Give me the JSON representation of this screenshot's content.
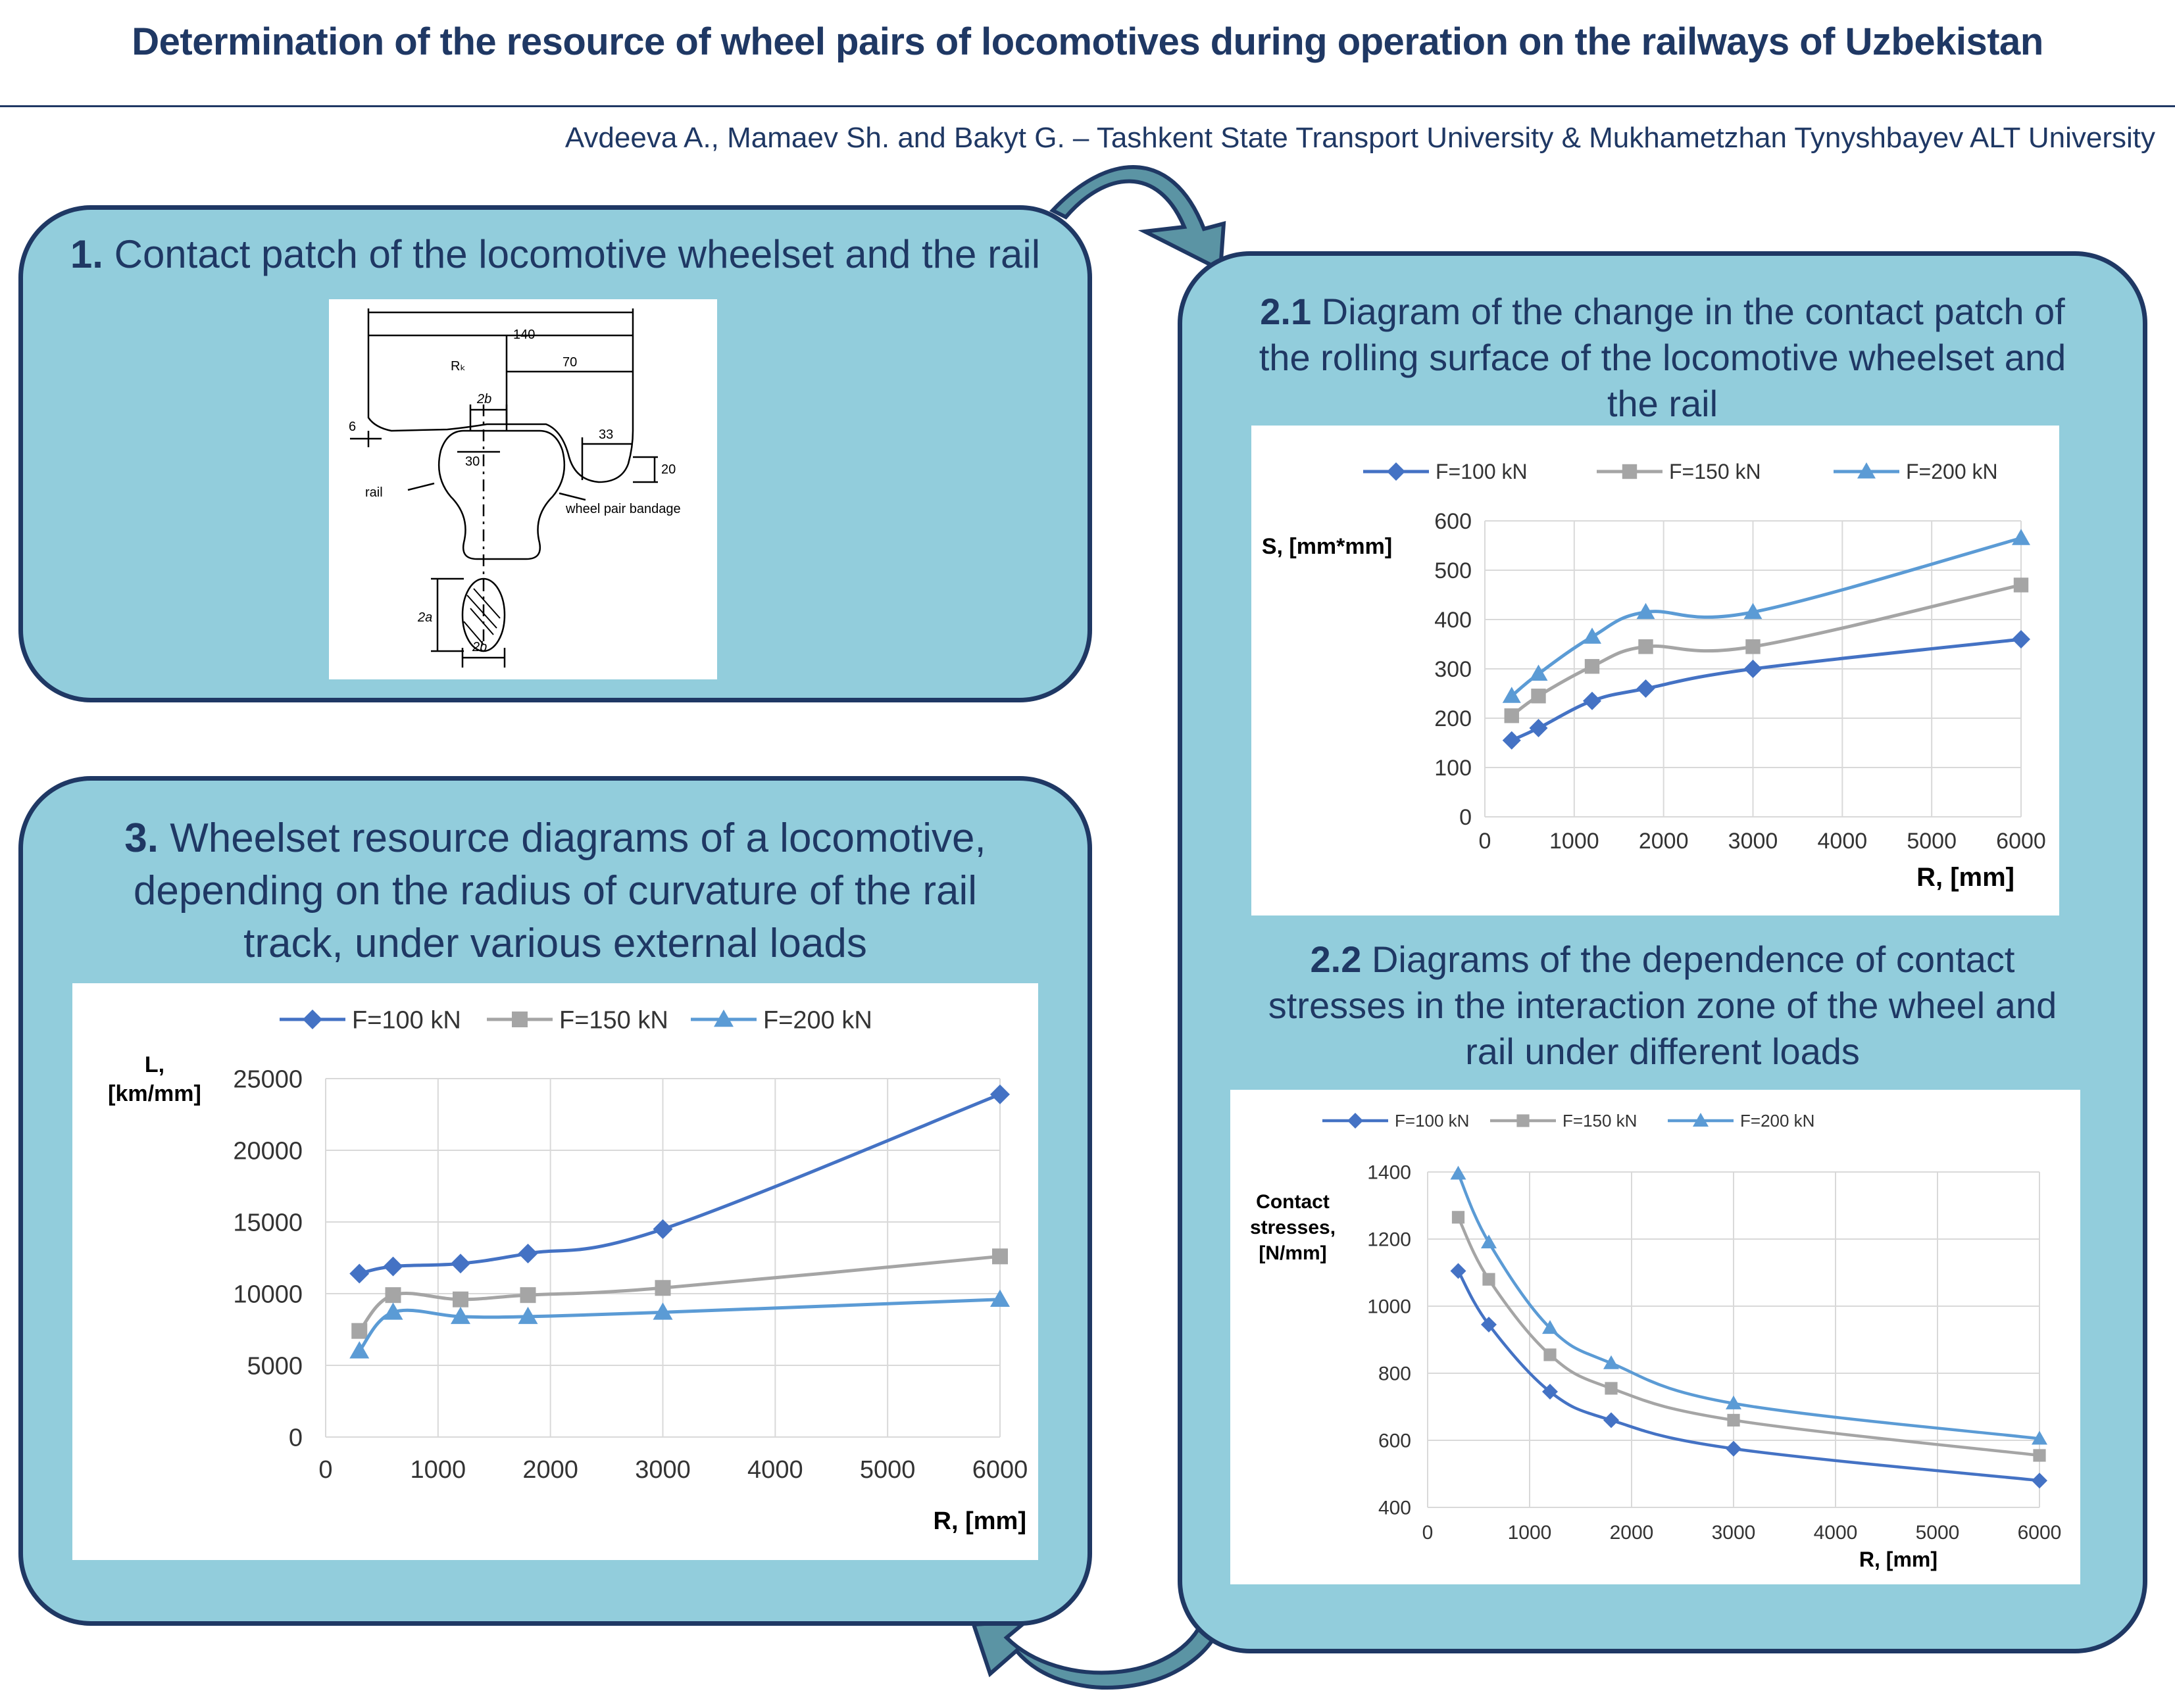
{
  "header": {
    "title": "Determination of the resource of wheel pairs of locomotives during operation on the railways of Uzbekistan",
    "authors": "Avdeeva A., Mamaev Sh. and Bakyt G. – Tashkent State Transport University &  Mukhametzhan Tynyshbayev ALT University"
  },
  "panel1": {
    "number": "1.",
    "title": " Contact patch of the locomotive wheelset and the rail",
    "diagram": {
      "dim_140": "140",
      "dim_70": "70",
      "dim_rk": "Rₖ",
      "dim_2b_top": "2b",
      "dim_6": "6",
      "dim_30": "30",
      "dim_33": "33",
      "dim_20": "20",
      "dim_2a": "2a",
      "dim_2b_bottom": "2b",
      "label_rail": "rail",
      "label_bandage": "wheel pair bandage"
    }
  },
  "panel21": {
    "number": "2.1",
    "title_line1": " Diagram of the change in the contact patch of",
    "title_line2": "the rolling surface of the locomotive wheelset and",
    "title_line3": "the rail"
  },
  "panel22": {
    "number": "2.2",
    "title_line1": " Diagrams of the dependence of contact",
    "title_line2": "stresses in the interaction zone of the wheel and",
    "title_line3": "rail under different loads"
  },
  "panel3": {
    "number": "3.",
    "title_line1": " Wheelset resource diagrams of a locomotive,",
    "title_line2": "depending on the radius of curvature of the rail",
    "title_line3": "track, under various external loads"
  },
  "colors": {
    "series_100": "#4472c4",
    "series_150": "#a5a5a5",
    "series_200": "#5b9bd5",
    "panel_fill": "#92cddc",
    "panel_border": "#1f3864"
  },
  "chart_data": [
    {
      "id": "contact-patch",
      "type": "line",
      "ylabel": "S, [mm*mm]",
      "xlabel": "R, [mm]",
      "xlim": [
        0,
        6000
      ],
      "ylim": [
        0,
        600
      ],
      "xticks": [
        0,
        1000,
        2000,
        3000,
        4000,
        5000,
        6000
      ],
      "yticks": [
        0,
        100,
        200,
        300,
        400,
        500,
        600
      ],
      "grid": true,
      "legend": "top",
      "x": [
        300,
        600,
        1200,
        1800,
        3000,
        6000
      ],
      "series": [
        {
          "name": "F=100 kN",
          "marker": "diamond",
          "values": [
            155,
            180,
            235,
            260,
            300,
            360
          ]
        },
        {
          "name": "F=150 kN",
          "marker": "square",
          "values": [
            205,
            245,
            305,
            345,
            345,
            470
          ]
        },
        {
          "name": "F=200 kN",
          "marker": "triangle",
          "values": [
            245,
            290,
            365,
            415,
            415,
            565
          ]
        }
      ]
    },
    {
      "id": "contact-stress",
      "type": "line",
      "ylabel_lines": [
        "Contact",
        "stresses,",
        "[N/mm]"
      ],
      "xlabel": "R, [mm]",
      "xlim": [
        0,
        6000
      ],
      "ylim": [
        400,
        1400
      ],
      "xticks": [
        0,
        1000,
        2000,
        3000,
        4000,
        5000,
        6000
      ],
      "yticks": [
        400,
        600,
        800,
        1000,
        1200,
        1400
      ],
      "grid": true,
      "legend": "top",
      "x": [
        300,
        600,
        1200,
        1800,
        3000,
        6000
      ],
      "series": [
        {
          "name": "F=100 kN",
          "marker": "diamond",
          "values": [
            1105,
            945,
            745,
            660,
            575,
            480
          ]
        },
        {
          "name": "F=150 kN",
          "marker": "square",
          "values": [
            1265,
            1080,
            855,
            755,
            660,
            555
          ]
        },
        {
          "name": "F=200 kN",
          "marker": "triangle",
          "values": [
            1395,
            1190,
            935,
            830,
            710,
            605
          ]
        }
      ]
    },
    {
      "id": "wheelset-resource",
      "type": "line",
      "ylabel_lines": [
        "L,",
        "[km/mm]"
      ],
      "xlabel": "R, [mm]",
      "xlim": [
        0,
        6000
      ],
      "ylim": [
        0,
        25000
      ],
      "xticks": [
        0,
        1000,
        2000,
        3000,
        4000,
        5000,
        6000
      ],
      "yticks": [
        0,
        5000,
        10000,
        15000,
        20000,
        25000
      ],
      "grid": true,
      "legend": "top",
      "x": [
        300,
        600,
        1200,
        1800,
        3000,
        6000
      ],
      "series": [
        {
          "name": "F=100 kN",
          "marker": "diamond",
          "values": [
            11400,
            11900,
            12100,
            12800,
            14500,
            23900
          ]
        },
        {
          "name": "F=150 kN",
          "marker": "square",
          "values": [
            7400,
            9900,
            9600,
            9900,
            10400,
            12600
          ]
        },
        {
          "name": "F=200 kN",
          "marker": "triangle",
          "values": [
            6000,
            8700,
            8400,
            8400,
            8700,
            9600
          ]
        }
      ]
    }
  ]
}
